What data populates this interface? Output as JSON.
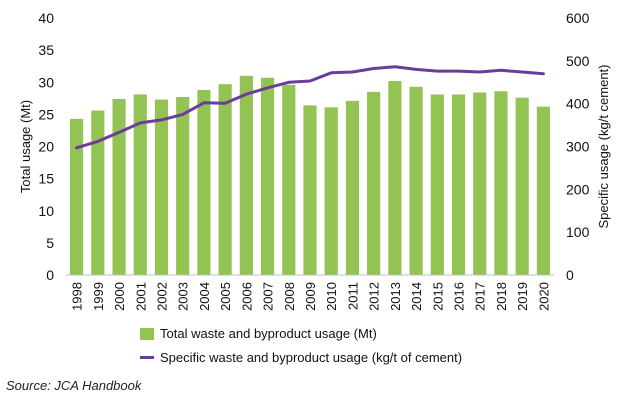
{
  "chart_data": {
    "type": "bar",
    "categories": [
      "1998",
      "1999",
      "2000",
      "2001",
      "2002",
      "2003",
      "2004",
      "2005",
      "2006",
      "2007",
      "2008",
      "2009",
      "2010",
      "2011",
      "2012",
      "2013",
      "2014",
      "2015",
      "2016",
      "2017",
      "2018",
      "2019",
      "2020"
    ],
    "series": [
      {
        "name": "Total waste and byproduct usage (Mt)",
        "type": "bar",
        "axis": "left",
        "color": "#92c353",
        "values": [
          24.3,
          25.6,
          27.4,
          28.1,
          27.3,
          27.7,
          28.8,
          29.7,
          31.0,
          30.7,
          29.6,
          26.4,
          26.1,
          27.1,
          28.5,
          30.2,
          29.3,
          28.1,
          28.1,
          28.4,
          28.6,
          27.6,
          26.2
        ]
      },
      {
        "name": "Specific waste and byproduct usage (kg/t of cement)",
        "type": "line",
        "axis": "right",
        "color": "#6a3d9a",
        "values": [
          297,
          312,
          333,
          355,
          362,
          375,
          402,
          401,
          422,
          437,
          450,
          453,
          472,
          474,
          482,
          486,
          480,
          476,
          476,
          474,
          478,
          474,
          470
        ]
      }
    ],
    "ylabel": "Total usage (Mt)",
    "ylim": [
      0,
      40
    ],
    "yticks": [
      "0",
      "5",
      "10",
      "15",
      "20",
      "25",
      "30",
      "35",
      "40"
    ],
    "y2label": "Specific usage (kg/t cement)",
    "y2lim": [
      0,
      600
    ],
    "y2ticks": [
      "0",
      "100",
      "200",
      "300",
      "400",
      "500",
      "600"
    ],
    "grid": false,
    "legend_position": "bottom"
  },
  "source": "Source: JCA Handbook"
}
